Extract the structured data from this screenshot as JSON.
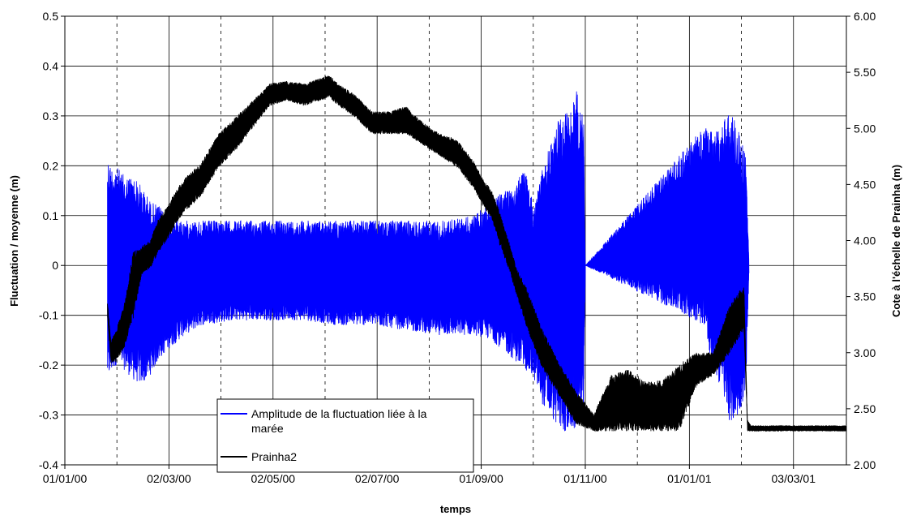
{
  "chart_data": {
    "type": "line",
    "title": "",
    "xlabel": "temps",
    "ylabel_left": "Fluctuation / moyenne (m)",
    "ylabel_right": "Cote à l'échelle de Prainha (m)",
    "x_ticks": [
      "01/01/00",
      "02/03/00",
      "02/05/00",
      "02/07/00",
      "01/09/00",
      "01/11/00",
      "01/01/01",
      "03/03/01"
    ],
    "x_tick_days": [
      0,
      61,
      122,
      183,
      244,
      305,
      366,
      427
    ],
    "x_minor_days": [
      30.5,
      91.5,
      152.5,
      213.5,
      274.5,
      335.5,
      396.5
    ],
    "x_range_days": [
      0,
      458
    ],
    "ylim_left": [
      -0.4,
      0.5
    ],
    "yticks_left": [
      "-0.4",
      "-0.3",
      "-0.2",
      "-0.1",
      "0",
      "0.1",
      "0.2",
      "0.3",
      "0.4",
      "0.5"
    ],
    "ylim_right": [
      2.0,
      6.0
    ],
    "yticks_right": [
      "2.00",
      "2.50",
      "3.00",
      "3.50",
      "4.00",
      "4.50",
      "5.00",
      "5.50",
      "6.00"
    ],
    "grid": true,
    "legend_position": "inside-lower-left",
    "series": [
      {
        "name": "Amplitude de la fluctuation liée à la marée",
        "axis": "left",
        "color": "#0000ff",
        "style": "band",
        "x_days": [
          25,
          27,
          30,
          35,
          40,
          45,
          50,
          55,
          60,
          70,
          80,
          100,
          120,
          140,
          160,
          180,
          200,
          220,
          240,
          250,
          260,
          270,
          275,
          280,
          290,
          295,
          300,
          304,
          305,
          375,
          378,
          385,
          390,
          395,
          399,
          401
        ],
        "upper": [
          0.22,
          0.2,
          0.2,
          0.18,
          0.18,
          0.16,
          0.13,
          0.12,
          0.1,
          0.09,
          0.09,
          0.09,
          0.09,
          0.09,
          0.09,
          0.09,
          0.09,
          0.09,
          0.1,
          0.13,
          0.16,
          0.19,
          0.12,
          0.2,
          0.3,
          0.32,
          0.35,
          0.3,
          0.0,
          0.28,
          0.27,
          0.28,
          0.32,
          0.27,
          0.22,
          0.0
        ],
        "lower": [
          -0.23,
          -0.22,
          -0.2,
          -0.21,
          -0.23,
          -0.24,
          -0.22,
          -0.19,
          -0.17,
          -0.14,
          -0.12,
          -0.11,
          -0.11,
          -0.11,
          -0.12,
          -0.12,
          -0.13,
          -0.14,
          -0.14,
          -0.15,
          -0.18,
          -0.21,
          -0.23,
          -0.28,
          -0.33,
          -0.34,
          -0.33,
          -0.3,
          0.0,
          -0.12,
          -0.2,
          -0.25,
          -0.32,
          -0.3,
          -0.25,
          0.0
        ]
      },
      {
        "name": "Prainha2",
        "axis": "right",
        "color": "#000000",
        "style": "band",
        "x_days": [
          25,
          27,
          30,
          35,
          40,
          45,
          50,
          55,
          60,
          65,
          70,
          80,
          90,
          100,
          110,
          120,
          130,
          140,
          150,
          155,
          160,
          170,
          180,
          190,
          200,
          210,
          220,
          230,
          240,
          245,
          250,
          255,
          260,
          265,
          270,
          280,
          290,
          300,
          305,
          310,
          320,
          330,
          340,
          350,
          360,
          370,
          380,
          390,
          398,
          400,
          402,
          458
        ],
        "upper": [
          3.45,
          3.1,
          3.2,
          3.45,
          3.9,
          3.95,
          4.0,
          4.2,
          4.3,
          4.45,
          4.55,
          4.7,
          4.95,
          5.1,
          5.25,
          5.4,
          5.42,
          5.4,
          5.45,
          5.48,
          5.4,
          5.3,
          5.15,
          5.15,
          5.2,
          5.05,
          4.95,
          4.9,
          4.7,
          4.55,
          4.45,
          4.25,
          4.0,
          3.75,
          3.6,
          3.2,
          2.9,
          2.65,
          2.55,
          2.45,
          2.8,
          2.85,
          2.75,
          2.75,
          2.9,
          3.0,
          3.0,
          3.45,
          3.6,
          2.4,
          2.35,
          2.35
        ],
        "lower": [
          3.3,
          2.9,
          2.92,
          3.05,
          3.3,
          3.7,
          3.75,
          3.9,
          4.0,
          4.15,
          4.25,
          4.4,
          4.65,
          4.8,
          5.0,
          5.2,
          5.25,
          5.2,
          5.25,
          5.28,
          5.2,
          5.1,
          4.95,
          4.95,
          4.95,
          4.85,
          4.75,
          4.65,
          4.45,
          4.3,
          4.2,
          3.95,
          3.75,
          3.5,
          3.25,
          2.85,
          2.6,
          2.35,
          2.33,
          2.3,
          2.3,
          2.3,
          2.3,
          2.3,
          2.3,
          2.7,
          2.8,
          3.0,
          3.2,
          2.3,
          2.3,
          2.3
        ]
      }
    ]
  }
}
